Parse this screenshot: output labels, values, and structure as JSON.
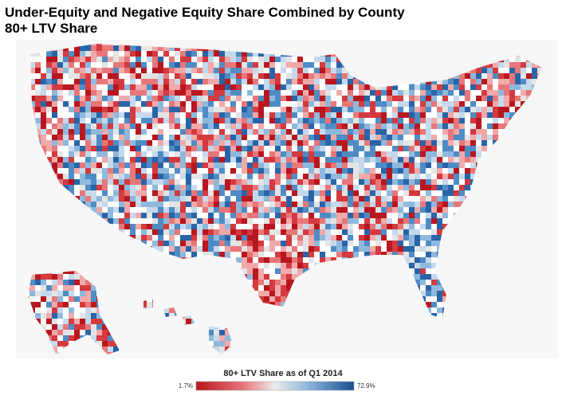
{
  "title": "Under-Equity and Negative Equity Share Combined by County",
  "subtitle": "80+ LTV Share",
  "legend": {
    "title": "80+ LTV Share as of Q1 2014",
    "min_label": "1.7%",
    "max_label": "72.9%"
  }
}
